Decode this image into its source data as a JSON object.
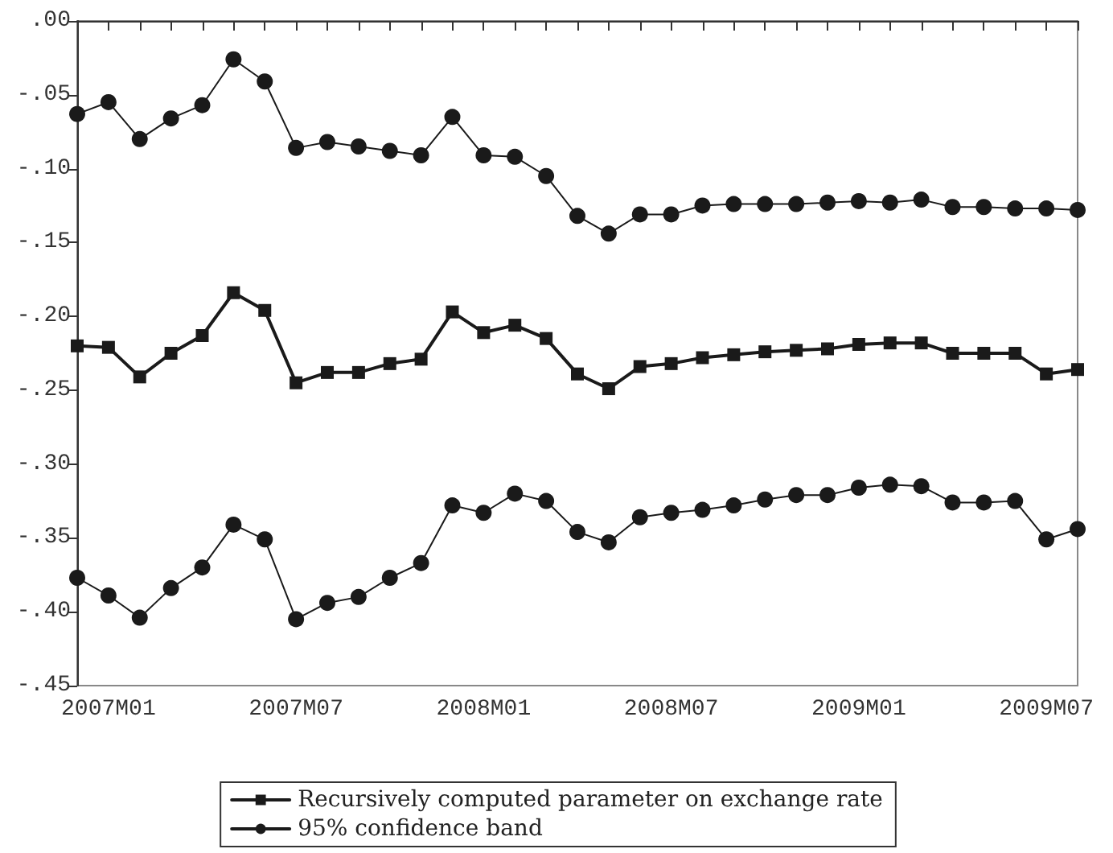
{
  "chart_data": {
    "type": "line",
    "categories": [
      null,
      "2007M01",
      null,
      null,
      null,
      null,
      null,
      "2007M07",
      null,
      null,
      null,
      null,
      null,
      "2008M01",
      null,
      null,
      null,
      null,
      null,
      "2008M07",
      null,
      null,
      null,
      null,
      null,
      "2009M01",
      null,
      null,
      null,
      null,
      null,
      "2009M07",
      null
    ],
    "series": [
      {
        "name": "Recursively computed parameter on exchange rate",
        "color": "#1a1a1a",
        "marker": "square",
        "values": [
          -0.22,
          -0.221,
          -0.241,
          -0.225,
          -0.213,
          -0.184,
          -0.196,
          -0.245,
          -0.238,
          -0.238,
          -0.232,
          -0.229,
          -0.197,
          -0.211,
          -0.206,
          -0.215,
          -0.239,
          -0.249,
          -0.234,
          -0.232,
          -0.228,
          -0.226,
          -0.224,
          -0.223,
          -0.222,
          -0.219,
          -0.218,
          -0.218,
          -0.225,
          -0.225,
          -0.225,
          -0.239,
          -0.236
        ]
      },
      {
        "name": "95% confidence band",
        "color": "#1a1a1a",
        "marker": "circle",
        "values": [
          -0.063,
          -0.055,
          -0.08,
          -0.066,
          -0.057,
          -0.026,
          -0.041,
          -0.086,
          -0.082,
          -0.085,
          -0.088,
          -0.091,
          -0.065,
          -0.091,
          -0.092,
          -0.105,
          -0.132,
          -0.144,
          -0.131,
          -0.131,
          -0.125,
          -0.124,
          -0.124,
          -0.124,
          -0.123,
          -0.122,
          -0.123,
          -0.121,
          -0.126,
          -0.126,
          -0.127,
          -0.127,
          -0.128
        ]
      },
      {
        "color": "#1a1a1a",
        "marker": "circle",
        "values": [
          -0.377,
          -0.389,
          -0.404,
          -0.384,
          -0.37,
          -0.341,
          -0.351,
          -0.405,
          -0.394,
          -0.39,
          -0.377,
          -0.367,
          -0.328,
          -0.333,
          -0.32,
          -0.325,
          -0.346,
          -0.353,
          -0.336,
          -0.333,
          -0.331,
          -0.328,
          -0.324,
          -0.321,
          -0.321,
          -0.316,
          -0.314,
          -0.315,
          -0.326,
          -0.326,
          -0.325,
          -0.351,
          -0.344
        ]
      }
    ],
    "ylim": [
      -0.45,
      0
    ],
    "yticks": [
      {
        "value": 0,
        "label": ".00"
      },
      {
        "value": -0.05,
        "label": "-.05"
      },
      {
        "value": -0.1,
        "label": "-.10"
      },
      {
        "value": -0.15,
        "label": "-.15"
      },
      {
        "value": -0.2,
        "label": "-.20"
      },
      {
        "value": -0.25,
        "label": "-.25"
      },
      {
        "value": -0.3,
        "label": "-.30"
      },
      {
        "value": -0.35,
        "label": "-.35"
      },
      {
        "value": -0.4,
        "label": "-.40"
      },
      {
        "value": -0.45,
        "label": "-.45"
      }
    ],
    "grid": false,
    "legend": "bottom"
  }
}
